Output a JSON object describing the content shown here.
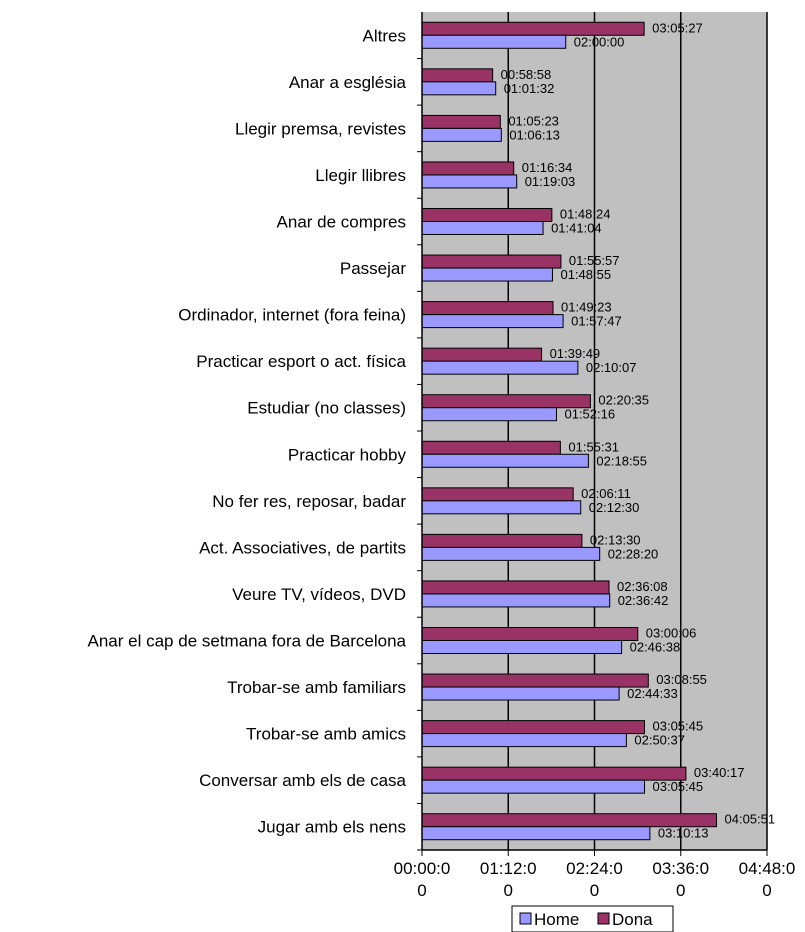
{
  "chart_data": {
    "type": "bar",
    "orientation": "horizontal",
    "categories": [
      "Altres",
      "Anar a església",
      "Llegir premsa, revistes",
      "Llegir llibres",
      "Anar de compres",
      "Passejar",
      "Ordinador, internet (fora feina)",
      "Practicar esport o act. física",
      "Estudiar (no classes)",
      "Practicar hobby",
      "No fer res, reposar, badar",
      "Act. Associatives, de partits",
      "Veure TV, vídeos, DVD",
      "Anar el cap de setmana fora de Barcelona",
      "Trobar-se amb familiars",
      "Trobar-se amb amics",
      "Conversar amb els de casa",
      "Jugar amb els nens"
    ],
    "series": [
      {
        "name": "Dona",
        "color": "#993366",
        "values": [
          "03:05:27",
          "00:58:58",
          "01:05:23",
          "01:16:34",
          "01:48:24",
          "01:55:57",
          "01:49:23",
          "01:39:49",
          "02:20:35",
          "01:55:31",
          "02:06:11",
          "02:13:30",
          "02:36:08",
          "03:00:06",
          "03:08:55",
          "03:05:45",
          "03:40:17",
          "04:05:51"
        ]
      },
      {
        "name": "Home",
        "color": "#9999ff",
        "values": [
          "02:00:00",
          "01:01:32",
          "01:06:13",
          "01:19:03",
          "01:41:04",
          "01:48:55",
          "01:57:47",
          "02:10:07",
          "01:52:16",
          "02:18:55",
          "02:12:30",
          "02:28:20",
          "02:36:42",
          "02:46:38",
          "02:44:33",
          "02:50:37",
          "03:05:45",
          "03:10:13"
        ]
      }
    ],
    "x_ticks": [
      [
        "00:00:0",
        "0"
      ],
      [
        "01:12:0",
        "0"
      ],
      [
        "02:24:0",
        "0"
      ],
      [
        "03:36:0",
        "0"
      ],
      [
        "04:48:0",
        "0"
      ]
    ],
    "xlim": [
      "00:00:00",
      "04:48:00"
    ],
    "grid": true,
    "legend_position": "bottom",
    "legend": [
      "Home",
      "Dona"
    ],
    "plot_background": "#c0c0c0",
    "gridline_color": "#000000"
  }
}
